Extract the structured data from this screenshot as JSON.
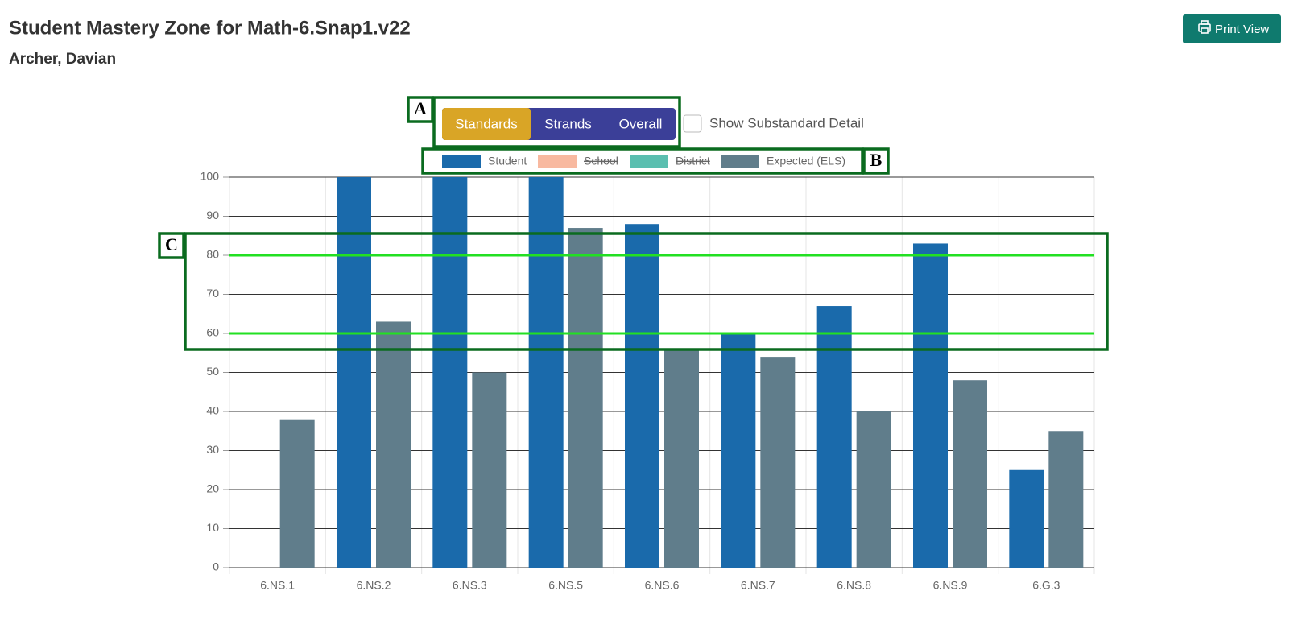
{
  "header": {
    "title": "Student Mastery Zone for Math-6.Snap1.v22",
    "subtitle": "Archer, Davian",
    "print_button": "Print View"
  },
  "view_buttons": [
    {
      "label": "Standards",
      "active": true
    },
    {
      "label": "Strands",
      "active": false
    },
    {
      "label": "Overall",
      "active": false
    }
  ],
  "checkbox": {
    "label": "Show Substandard Detail",
    "checked": false
  },
  "annotations": {
    "a": "A",
    "b": "B",
    "c": "C"
  },
  "chart_data": {
    "type": "bar",
    "categories": [
      "6.NS.1",
      "6.NS.2",
      "6.NS.3",
      "6.NS.5",
      "6.NS.6",
      "6.NS.7",
      "6.NS.8",
      "6.NS.9",
      "6.G.3"
    ],
    "series": [
      {
        "name": "Student",
        "color": "#1a6aab",
        "hidden": false,
        "values": [
          0,
          100,
          100,
          100,
          88,
          60,
          67,
          83,
          25
        ]
      },
      {
        "name": "School",
        "color": "#f8b9a0",
        "hidden": true,
        "values": [
          null,
          null,
          null,
          null,
          null,
          null,
          null,
          null,
          null
        ]
      },
      {
        "name": "District",
        "color": "#5bbfb0",
        "hidden": true,
        "values": [
          null,
          null,
          null,
          null,
          null,
          null,
          null,
          null,
          null
        ]
      },
      {
        "name": "Expected (ELS)",
        "color": "#607d8b",
        "hidden": false,
        "values": [
          38,
          63,
          50,
          87,
          56,
          54,
          40,
          48,
          35
        ]
      }
    ],
    "ylim": [
      0,
      100
    ],
    "yticks": [
      0,
      10,
      20,
      30,
      40,
      50,
      60,
      70,
      80,
      90,
      100
    ],
    "grid": true,
    "reference_lines": [
      60,
      80
    ],
    "reference_color": "#22e022",
    "legend": "top"
  }
}
